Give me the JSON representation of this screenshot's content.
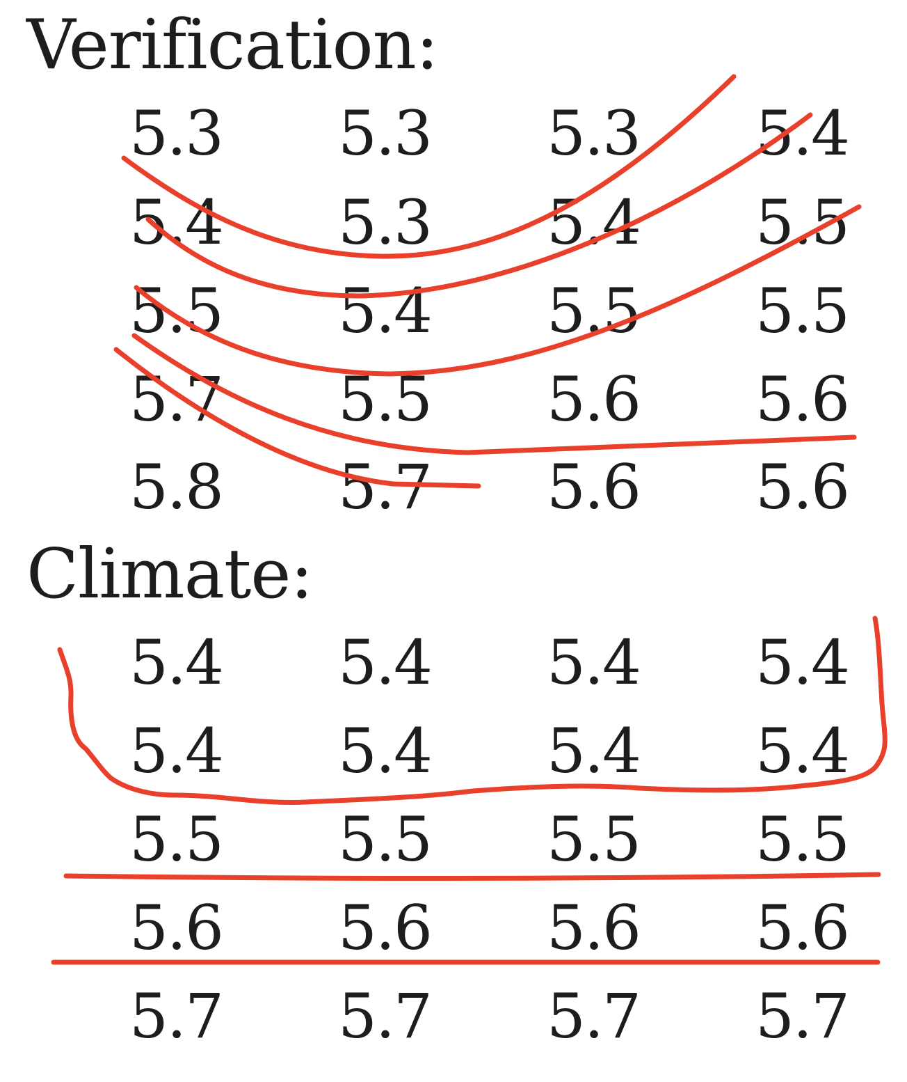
{
  "verification": {
    "heading": "Verification:",
    "rows": [
      [
        "5.3",
        "5.3",
        "5.3",
        "5.4"
      ],
      [
        "5.4",
        "5.3",
        "5.4",
        "5.5"
      ],
      [
        "5.5",
        "5.4",
        "5.5",
        "5.5"
      ],
      [
        "5.7",
        "5.5",
        "5.6",
        "5.6"
      ],
      [
        "5.8",
        "5.7",
        "5.6",
        "5.6"
      ]
    ]
  },
  "climate": {
    "heading": "Climate:",
    "rows": [
      [
        "5.4",
        "5.4",
        "5.4",
        "5.4"
      ],
      [
        "5.4",
        "5.4",
        "5.4",
        "5.4"
      ],
      [
        "5.5",
        "5.5",
        "5.5",
        "5.5"
      ],
      [
        "5.6",
        "5.6",
        "5.6",
        "5.6"
      ],
      [
        "5.7",
        "5.7",
        "5.7",
        "5.7"
      ]
    ]
  },
  "annotation_color": "#e8402a"
}
